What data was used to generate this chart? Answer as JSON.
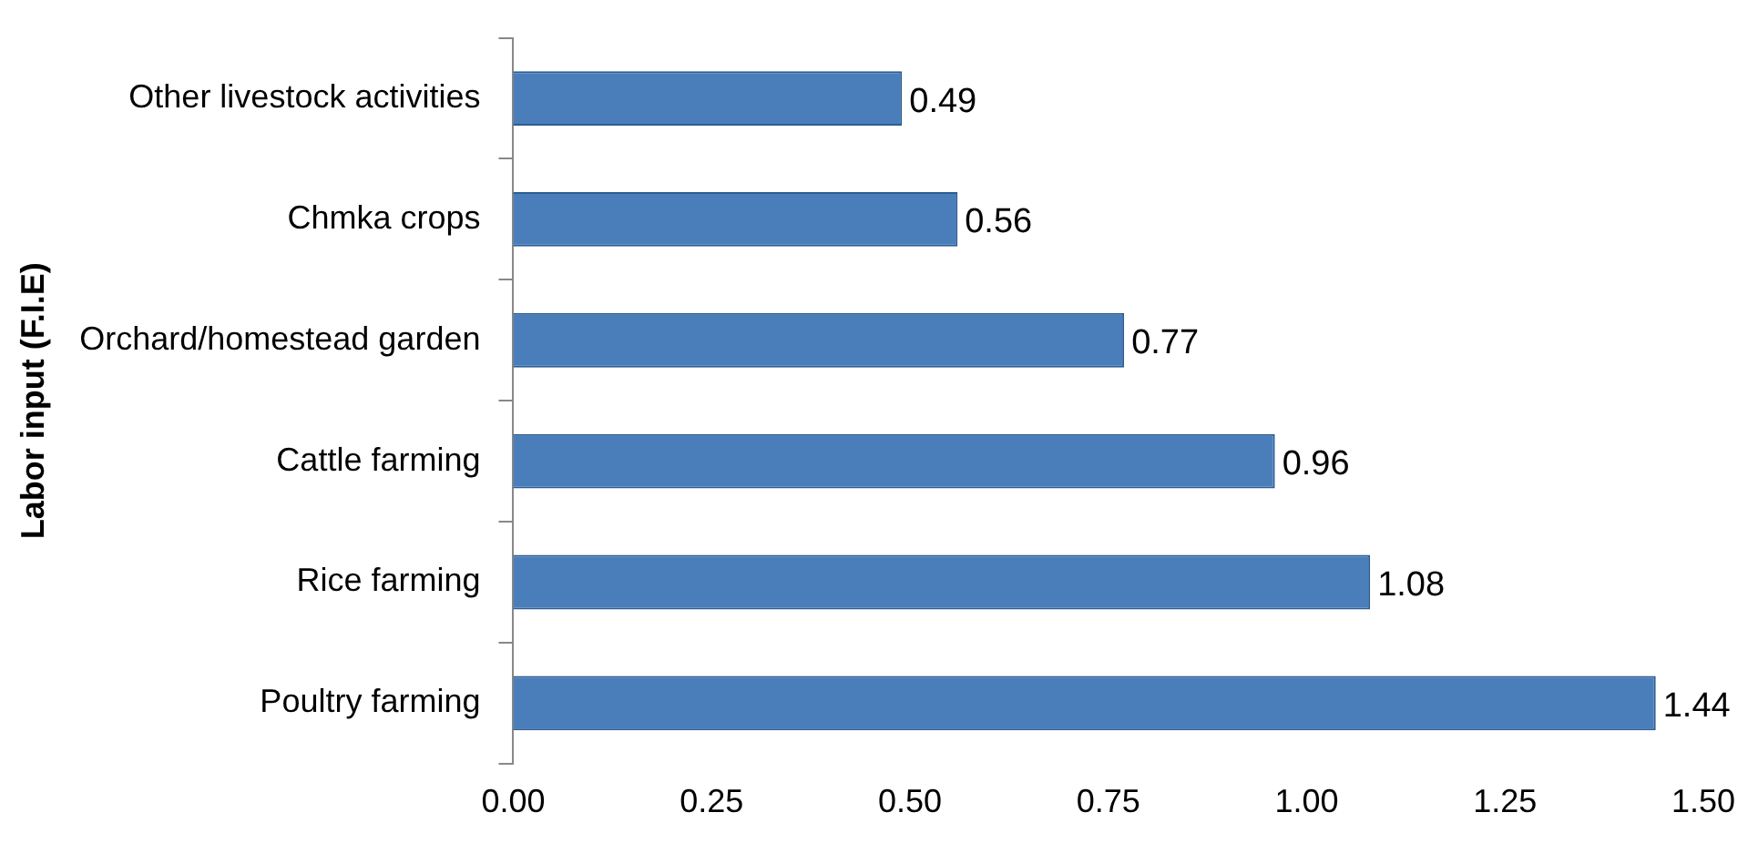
{
  "chart_data": {
    "type": "bar",
    "orientation": "horizontal",
    "ylabel": "Labor input (F.I.E)",
    "categories": [
      "Other livestock activities",
      "Chmka crops",
      "Orchard/homestead garden",
      "Cattle farming",
      "Rice farming",
      "Poultry farming"
    ],
    "values": [
      0.49,
      0.56,
      0.77,
      0.96,
      1.08,
      1.44
    ],
    "color": "#4a7ebb",
    "xlim": [
      0,
      1.5
    ],
    "xticks": [
      {
        "value": 0,
        "label": "0.00"
      },
      {
        "value": 0.25,
        "label": "0.25"
      },
      {
        "value": 0.5,
        "label": "0.50"
      },
      {
        "value": 0.75,
        "label": "0.75"
      },
      {
        "value": 1,
        "label": "1.00"
      },
      {
        "value": 1.25,
        "label": "1.25"
      },
      {
        "value": 1.5,
        "label": "1.50"
      }
    ],
    "grid": false,
    "data_labels": true,
    "legend": false
  }
}
